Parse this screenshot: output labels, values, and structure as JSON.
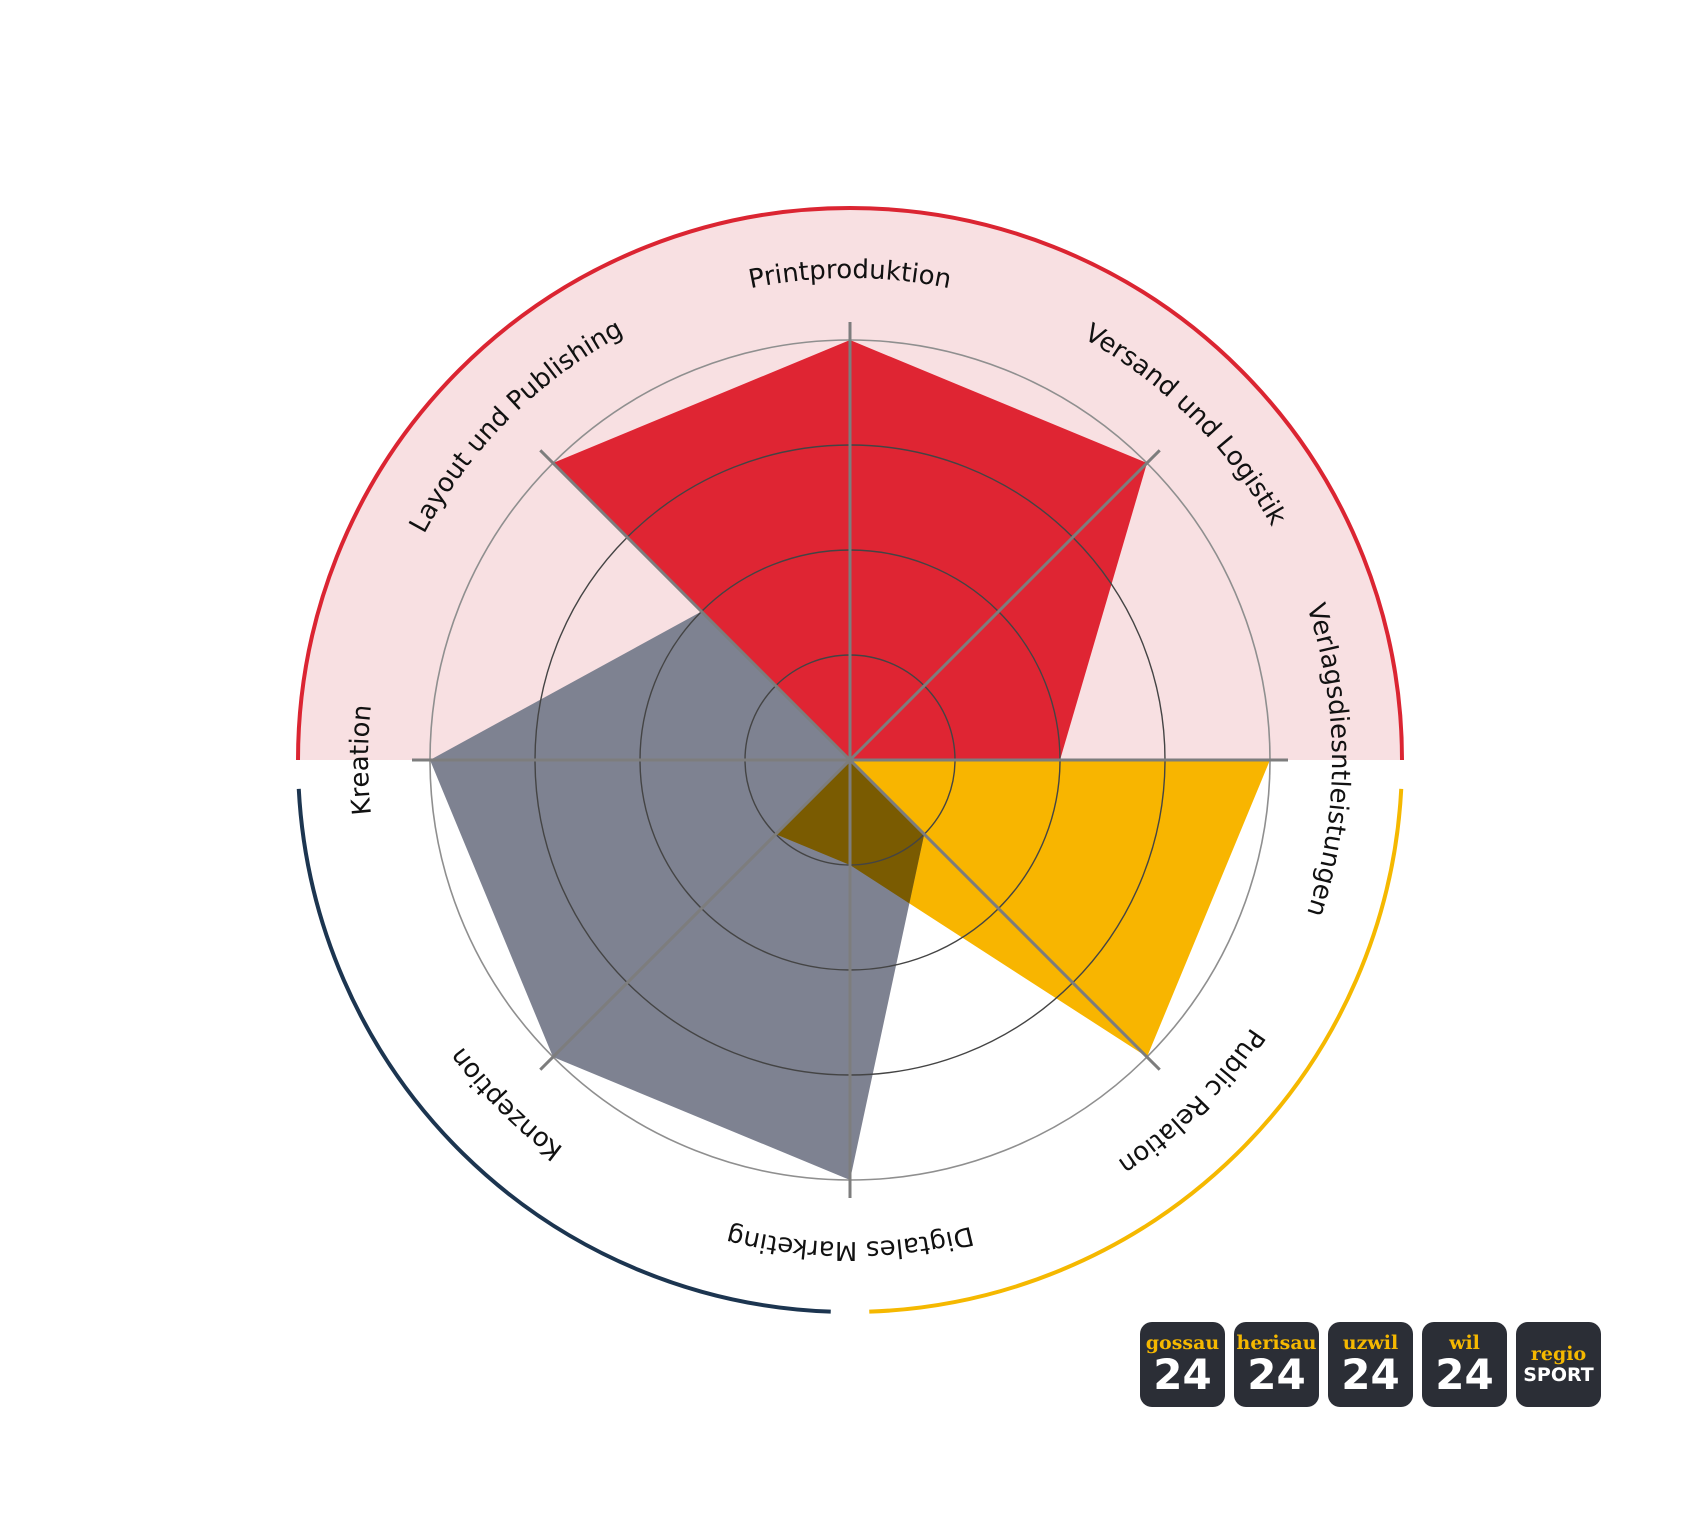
{
  "colors": {
    "red_ring": "#db2532",
    "red_band": "#f8e0e2",
    "red_area": "#df2533",
    "yellow_ring": "#f5b800",
    "yellow_area": "#f8b500",
    "navy_ring": "#1c3550",
    "grey_area": "#7e8291",
    "overlap_red_grey": "#6e121b",
    "overlap_yellow_grey": "#7a5b01",
    "grid": "#7d7d7d",
    "badge_bg": "#2b2e36",
    "badge_accent": "#f5b800"
  },
  "axes": [
    {
      "label": "Printproduktion"
    },
    {
      "label": "Versand und Logistik"
    },
    {
      "label": "Verlagsdiesntleistungen"
    },
    {
      "label": "Public Relation"
    },
    {
      "label": "Digtales Marketing"
    },
    {
      "label": "Konzeption"
    },
    {
      "label": "Kreation"
    },
    {
      "label": "Layout und Publishing"
    }
  ],
  "groups": [
    {
      "color": "red",
      "ring_arc": "top half",
      "values": [
        4,
        4,
        2,
        0,
        0,
        0,
        0,
        4
      ]
    },
    {
      "color": "yellow",
      "ring_arc": "bottom right quarter",
      "values": [
        0,
        0,
        4,
        4,
        1,
        1,
        0,
        0
      ]
    },
    {
      "color": "grey",
      "ring_arc": "bottom left quarter",
      "values": [
        0,
        0,
        0,
        1,
        4,
        4,
        4,
        2
      ]
    }
  ],
  "scale": {
    "rings": 4,
    "max": 4
  },
  "badges": [
    {
      "top": "gossau",
      "bottom": "24"
    },
    {
      "top": "herisau",
      "bottom": "24"
    },
    {
      "top": "uzwil",
      "bottom": "24"
    },
    {
      "top": "wil",
      "bottom": "24"
    },
    {
      "top": "regio",
      "bottom": "SPORT"
    }
  ]
}
